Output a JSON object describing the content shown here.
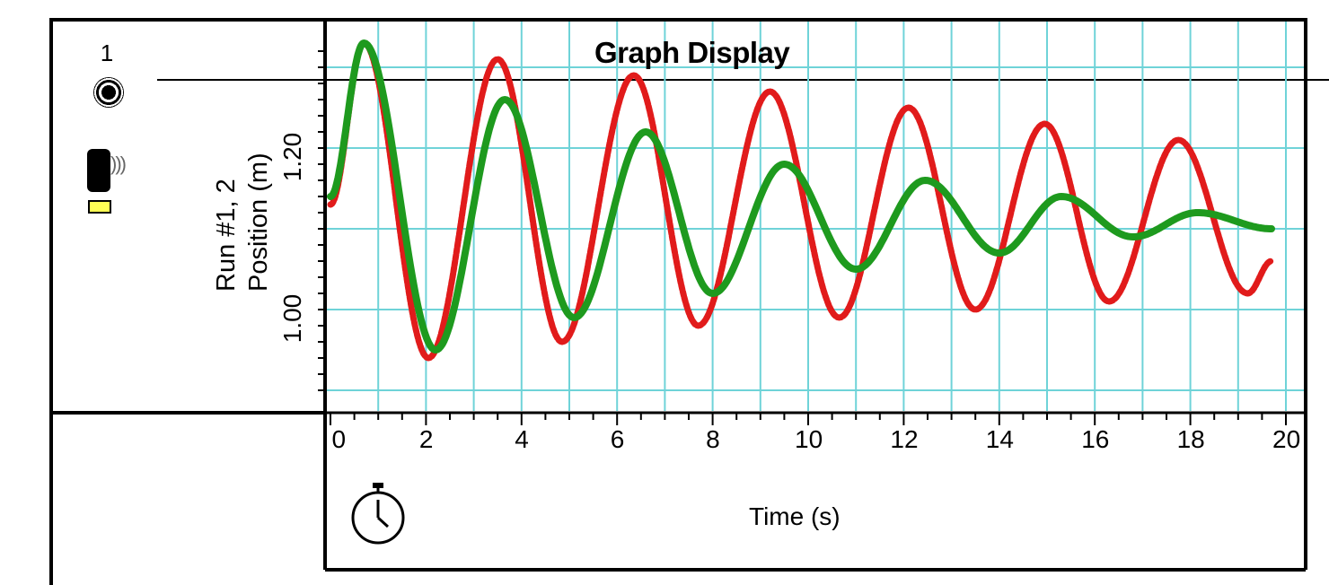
{
  "legend": {
    "run_number": "1"
  },
  "chart_data": {
    "type": "line",
    "title": "Graph Display",
    "xlabel": "Time (s)",
    "ylabel_line1": "Run #1, 2",
    "ylabel_line2": "Position (m)",
    "xlim": [
      0,
      20.5
    ],
    "ylim": [
      0.88,
      1.36
    ],
    "x_ticks": [
      0,
      2,
      4,
      6,
      8,
      10,
      12,
      14,
      16,
      18,
      20
    ],
    "x_tick_labels": [
      "0",
      "2",
      "4",
      "6",
      "8",
      "10",
      "12",
      "14",
      "16",
      "18",
      "20"
    ],
    "y_ticks": [
      1.0,
      1.2
    ],
    "y_tick_labels": [
      "1.00",
      "1.20"
    ],
    "grid": true,
    "series": [
      {
        "name": "Run #1",
        "color": "#e11b1b",
        "x": [
          0.0,
          0.7,
          2.05,
          3.5,
          4.85,
          6.35,
          7.7,
          9.2,
          10.65,
          12.1,
          13.5,
          14.95,
          16.3,
          17.75,
          19.2,
          19.7
        ],
        "y": [
          1.13,
          1.33,
          0.94,
          1.31,
          0.96,
          1.29,
          0.98,
          1.27,
          0.99,
          1.25,
          1.0,
          1.23,
          1.01,
          1.21,
          1.02,
          1.06
        ]
      },
      {
        "name": "Run #2",
        "color": "#1e9a1e",
        "x": [
          0.0,
          0.7,
          2.2,
          3.65,
          5.1,
          6.6,
          8.0,
          9.5,
          11.0,
          12.45,
          14.0,
          15.3,
          16.8,
          18.15,
          19.7
        ],
        "y": [
          1.14,
          1.33,
          0.95,
          1.26,
          0.99,
          1.22,
          1.02,
          1.18,
          1.05,
          1.16,
          1.07,
          1.14,
          1.09,
          1.12,
          1.1
        ]
      }
    ]
  },
  "colors": {
    "grid": "#6fd3d8",
    "frame": "#000000"
  },
  "icons": {
    "stopwatch": "stopwatch-icon",
    "sensor": "motion-sensor-icon",
    "run_marker": "run-marker-icon"
  }
}
